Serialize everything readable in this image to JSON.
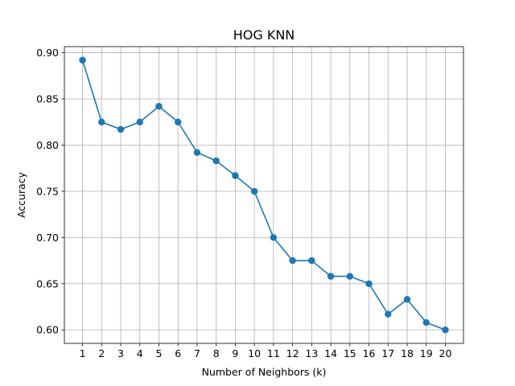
{
  "chart_data": {
    "type": "line",
    "title": "HOG KNN",
    "xlabel": "Number of Neighbors (k)",
    "ylabel": "Accuracy",
    "x": [
      1,
      2,
      3,
      4,
      5,
      6,
      7,
      8,
      9,
      10,
      11,
      12,
      13,
      14,
      15,
      16,
      17,
      18,
      19,
      20
    ],
    "series": [
      {
        "values": [
          0.892,
          0.825,
          0.817,
          0.825,
          0.842,
          0.825,
          0.792,
          0.783,
          0.767,
          0.75,
          0.7,
          0.675,
          0.675,
          0.658,
          0.658,
          0.65,
          0.617,
          0.633,
          0.608,
          0.6
        ],
        "color": "#1f77b4",
        "marker": "circle"
      }
    ],
    "xticks": [
      1,
      2,
      3,
      4,
      5,
      6,
      7,
      8,
      9,
      10,
      11,
      12,
      13,
      14,
      15,
      16,
      17,
      18,
      19,
      20
    ],
    "yticks": [
      "0.60",
      "0.65",
      "0.70",
      "0.75",
      "0.80",
      "0.85",
      "0.90"
    ],
    "xlim": [
      0.05,
      20.95
    ],
    "ylim": [
      0.5854,
      0.9066
    ],
    "grid": true,
    "legend": "none"
  }
}
